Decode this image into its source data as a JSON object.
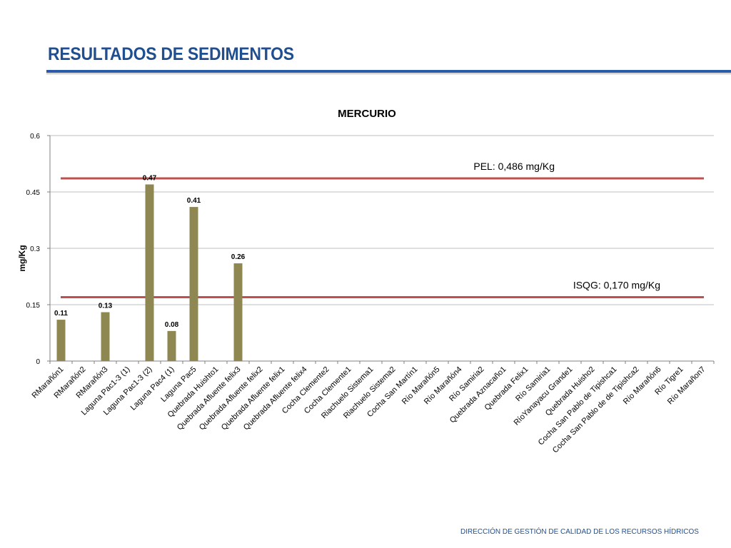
{
  "slide": {
    "title": "RESULTADOS DE SEDIMENTOS",
    "footer": "DIRECCIÓN DE GESTIÓN DE CALIDAD DE LOS RECURSOS HÍDRICOS"
  },
  "colors": {
    "title": "#1f4e91",
    "bar": "#8e8752",
    "reference_line": "#c0504d",
    "grid": "#bfbfbf"
  },
  "chart_data": {
    "type": "bar",
    "title": "MERCURIO",
    "xlabel": "",
    "ylabel": "mg/Kg",
    "ylim": [
      0,
      0.6
    ],
    "yticks": [
      0,
      0.15,
      0.3,
      0.45,
      0.6
    ],
    "ytick_labels": [
      "0",
      "0.15",
      "0.3",
      "0.45",
      "0.6"
    ],
    "grid": true,
    "categories": [
      "RMarañón1",
      "RMarañón2",
      "RMarañón3",
      "Laguna Pac1-3 (1)",
      "Laguna Pac1-3 (2)",
      "Laguna Pac4 (1)",
      "Laguna Pac5",
      "Quebrada Huishto1",
      "Quebrada Afluente felix3",
      "Quebrada Afluente felix2",
      "Quebrada Afluente felix1",
      "Quebrada Afluente felix4",
      "Cocha Clemente2",
      "Cocha Clemente1",
      "Riachuelo Sistema1",
      "Riachuelo Sistema2",
      "Cocha San Martín1",
      "Río Marañón5",
      "Río Marañón4",
      "Río Samiria2",
      "Quebrada Aznacaño1",
      "Quebrada Felix1",
      "Río Samiria1",
      "RíoYanayacu Grande1",
      "Quebrada Huisho2",
      "Cocha San Pablo de Tipishca1",
      "Cocha San Pablo de de Tipishca2",
      "Río Marañón6",
      "Río Tigre1",
      "Río Marañon7"
    ],
    "values": [
      0.11,
      null,
      0.13,
      null,
      0.47,
      0.08,
      0.41,
      null,
      0.26,
      null,
      null,
      null,
      null,
      null,
      null,
      null,
      null,
      null,
      null,
      null,
      null,
      null,
      null,
      null,
      null,
      null,
      null,
      null,
      null,
      null
    ],
    "data_labels": [
      "0.11",
      "",
      "0.13",
      "",
      "0.47",
      "0.08",
      "0.41",
      "",
      "0.26",
      "",
      "",
      "",
      "",
      "",
      "",
      "",
      "",
      "",
      "",
      "",
      "",
      "",
      "",
      "",
      "",
      "",
      "",
      "",
      "",
      ""
    ],
    "reference_lines": [
      {
        "label": "PEL: 0,486 mg/Kg",
        "value": 0.486
      },
      {
        "label": "ISQG: 0,170 mg/Kg",
        "value": 0.17
      }
    ]
  }
}
